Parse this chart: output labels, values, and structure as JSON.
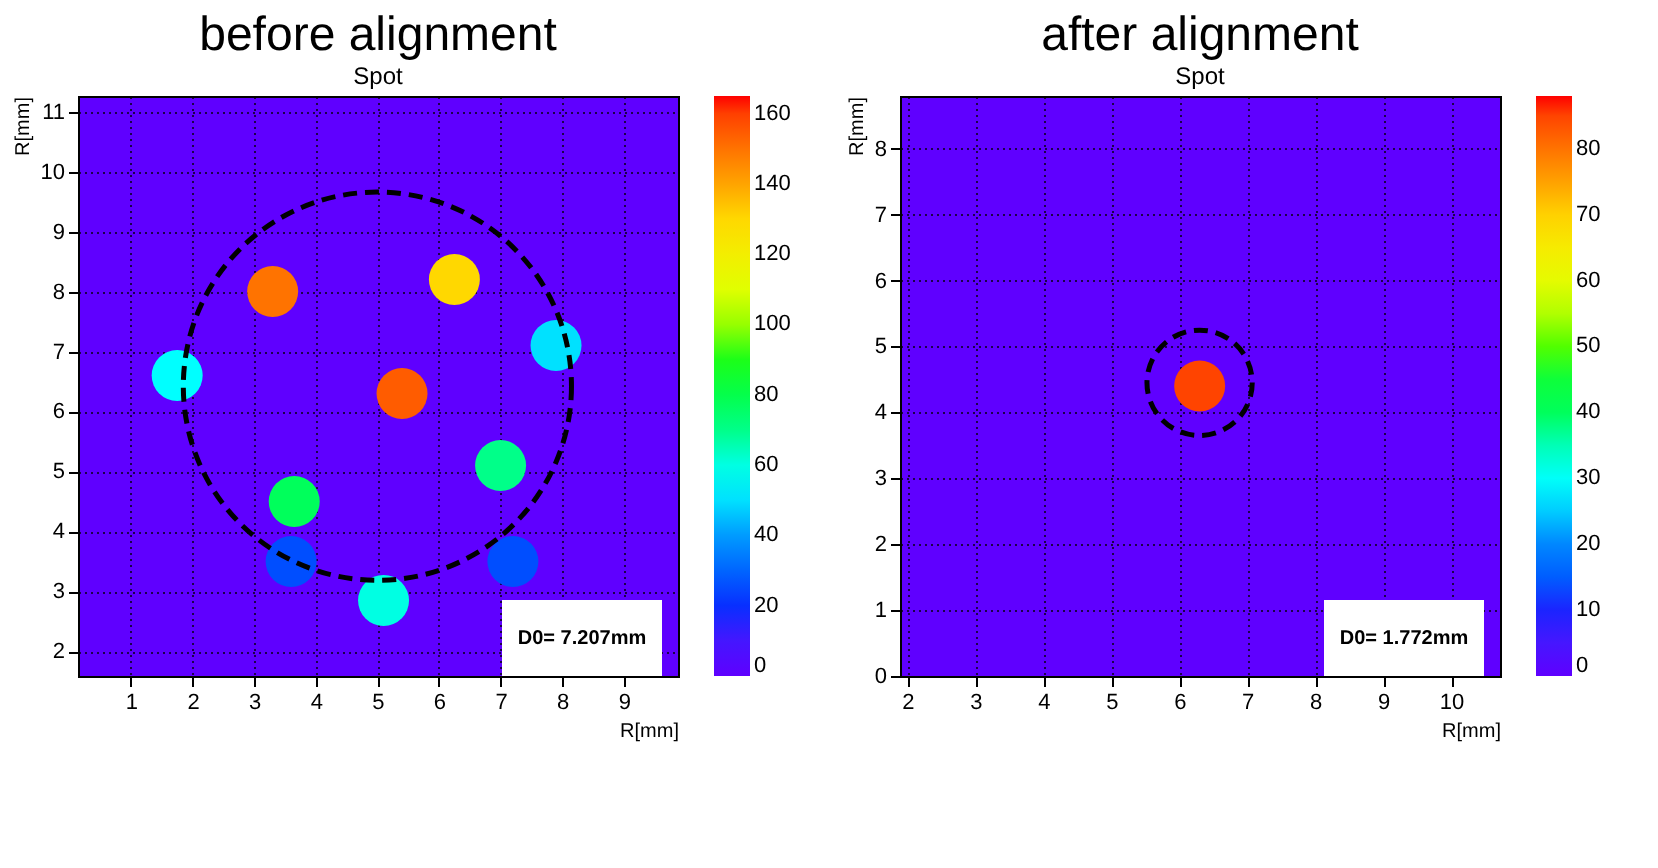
{
  "chart_data": [
    {
      "type": "scatter",
      "title": "before alignment",
      "subtitle": "Spot",
      "xlabel": "R[mm]",
      "ylabel": "R[mm]",
      "xlim": [
        0.14,
        9.88
      ],
      "ylim": [
        1.59,
        11.26
      ],
      "xticks": [
        1,
        2,
        3,
        4,
        5,
        6,
        7,
        8,
        9
      ],
      "yticks": [
        2,
        3,
        4,
        5,
        6,
        7,
        8,
        9,
        10,
        11
      ],
      "clim": [
        0,
        165
      ],
      "cticks": [
        0,
        20,
        40,
        60,
        80,
        100,
        120,
        140,
        160
      ],
      "grid": true,
      "marker": "circle",
      "annotations": [
        "D0=  7.207mm"
      ],
      "series": [
        {
          "type": "scatter",
          "x": [
            3.3,
            6.25,
            1.75,
            7.9,
            5.4,
            7.0,
            3.65,
            3.6,
            7.2,
            5.1
          ],
          "values": [
            8.0,
            8.2,
            6.6,
            7.1,
            6.3,
            5.1,
            4.5,
            3.5,
            3.5,
            2.85
          ],
          "cvalues": [
            150,
            130,
            55,
            50,
            155,
            70,
            75,
            25,
            25,
            60
          ]
        }
      ]
    },
    {
      "type": "scatter",
      "title": "after alignment",
      "subtitle": "Spot",
      "xlabel": "R[mm]",
      "ylabel": "R[mm]",
      "xlim": [
        1.89,
        10.72
      ],
      "ylim": [
        0,
        8.8
      ],
      "xticks": [
        2,
        3,
        4,
        5,
        6,
        7,
        8,
        9,
        10
      ],
      "yticks": [
        0,
        1,
        2,
        3,
        4,
        5,
        6,
        7,
        8
      ],
      "clim": [
        0,
        88
      ],
      "cticks": [
        0,
        10,
        20,
        30,
        40,
        50,
        60,
        70,
        80
      ],
      "grid": true,
      "marker": "circle",
      "annotations": [
        "D0=  1.772mm"
      ],
      "series": [
        {
          "type": "scatter",
          "x": [
            6.3
          ],
          "values": [
            4.4
          ],
          "cvalues": [
            85
          ]
        }
      ]
    }
  ]
}
